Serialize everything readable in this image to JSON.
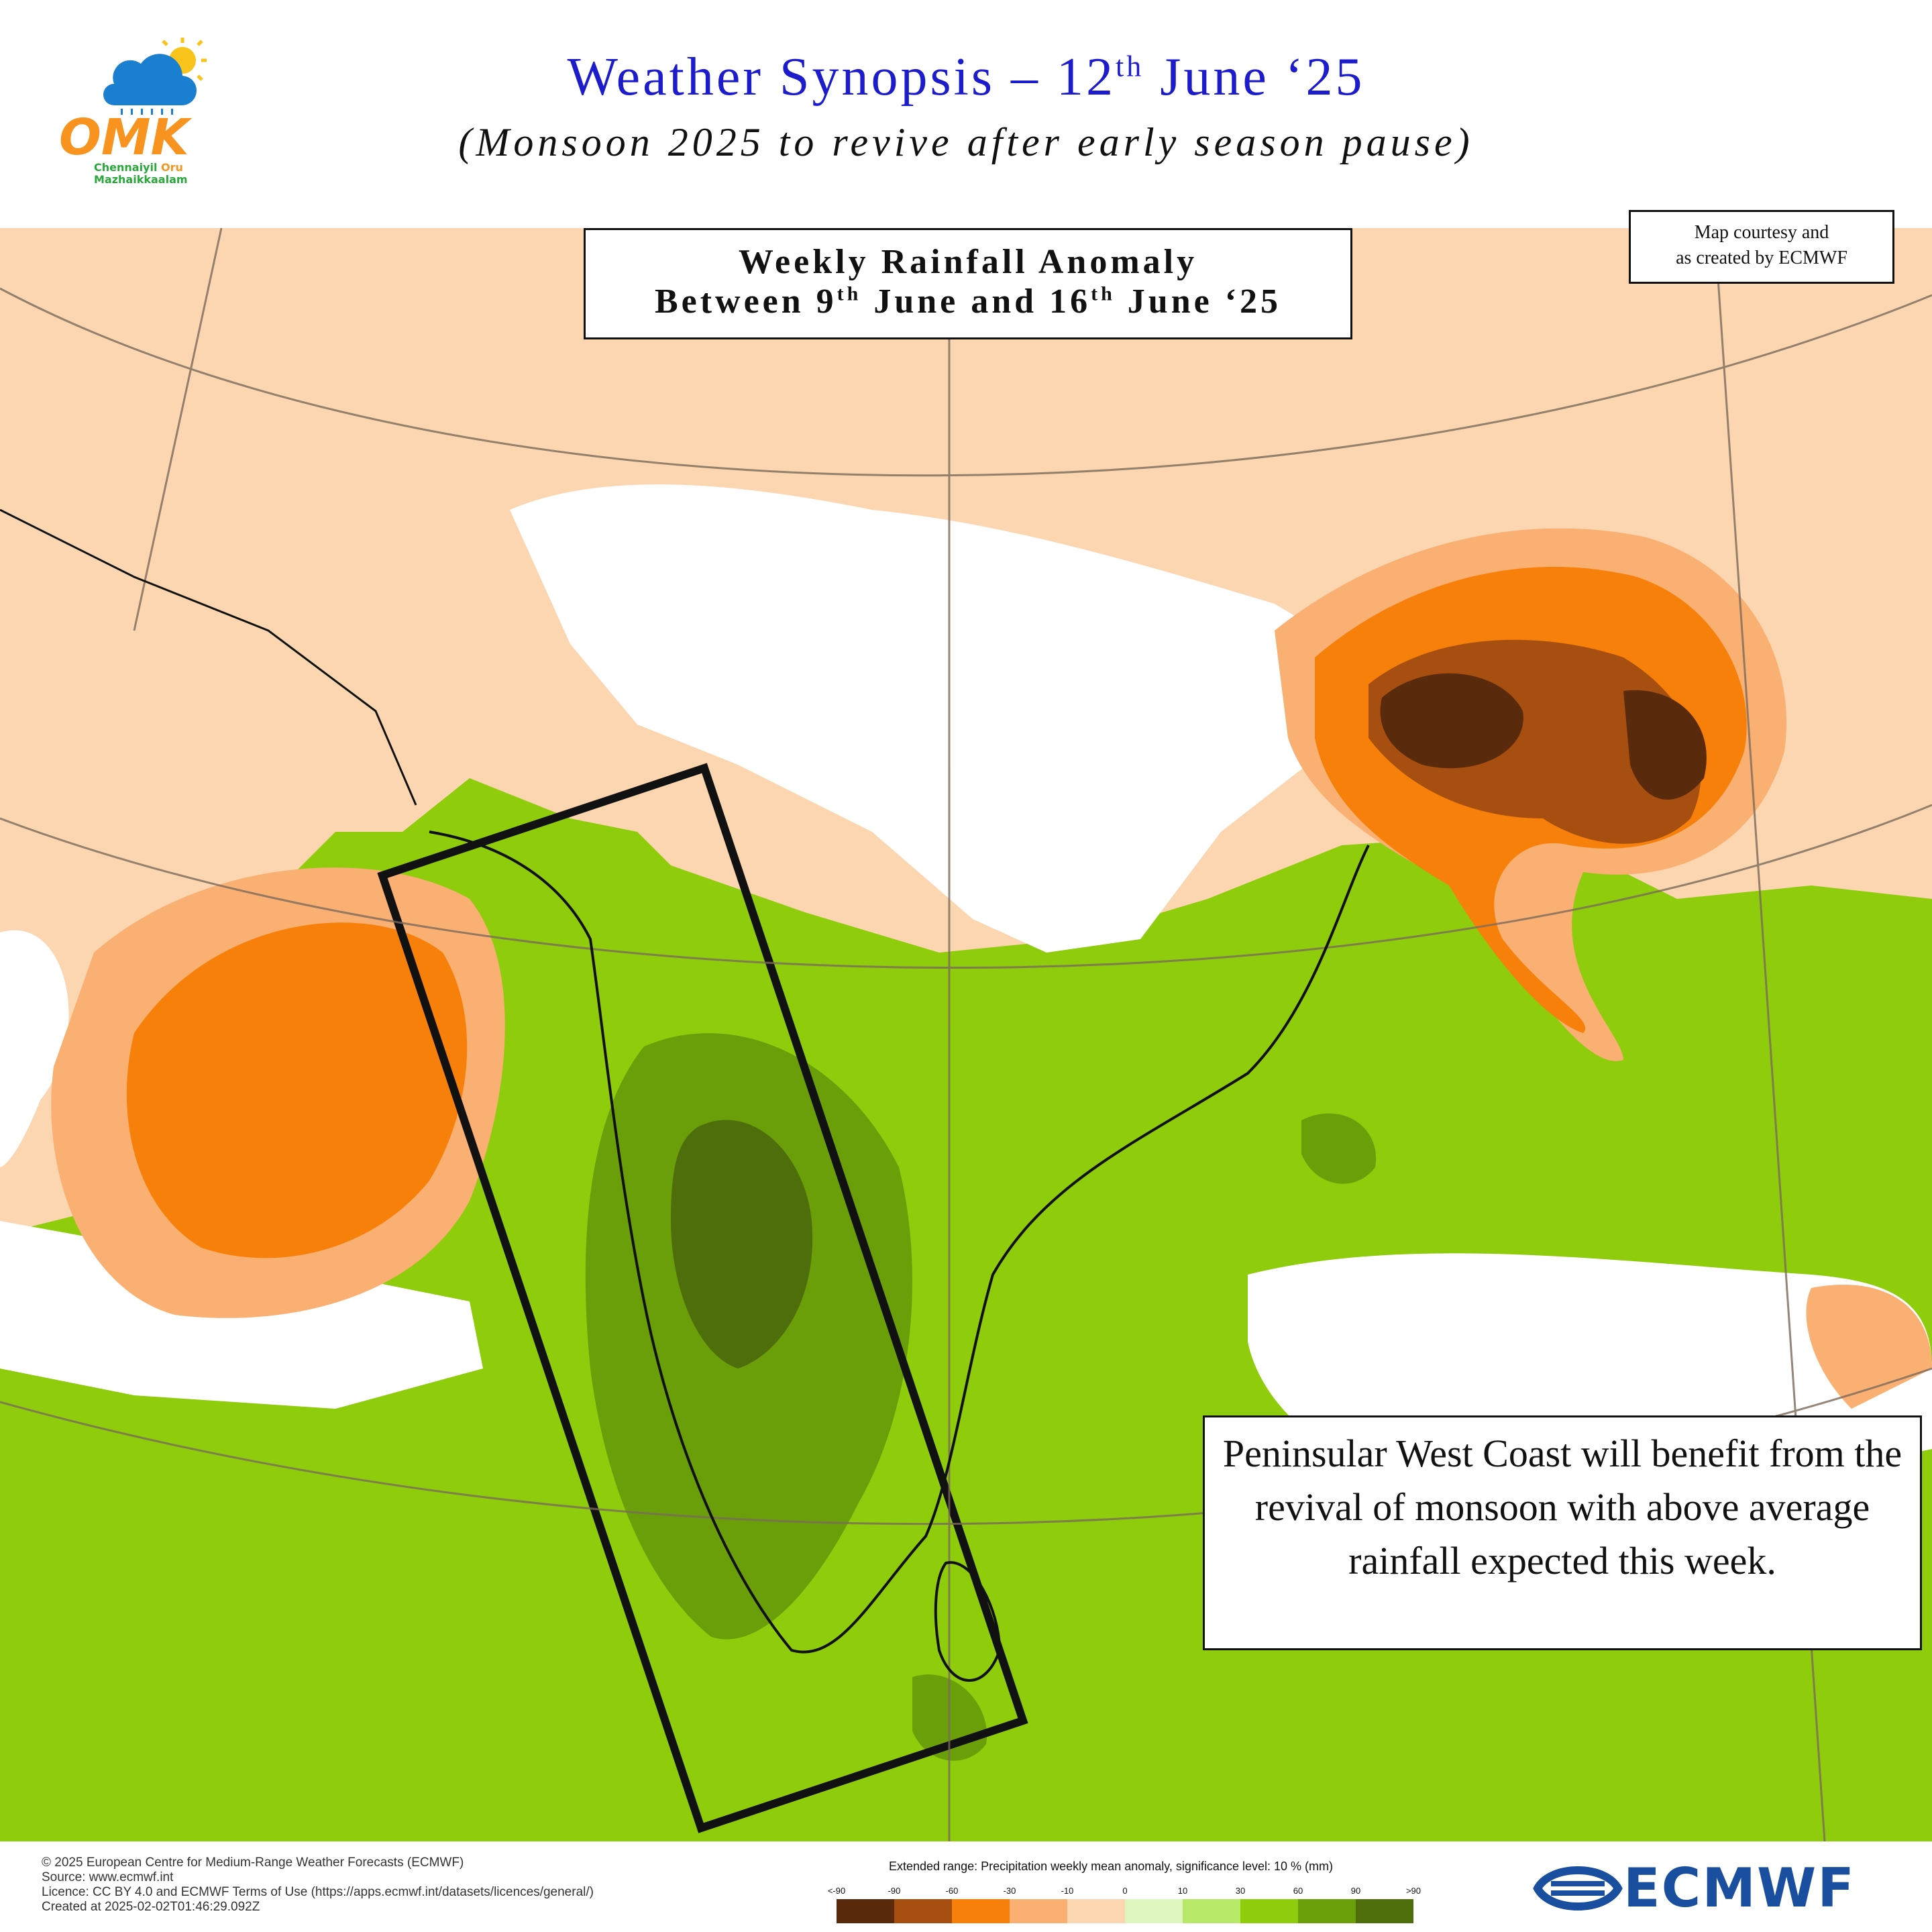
{
  "header": {
    "title_main": "Weather Synopsis – 12",
    "title_sup": "th",
    "title_end": " June ‘25",
    "subtitle": "(Monsoon 2025 to revive after early season pause)"
  },
  "logo": {
    "letters": "OMK",
    "line1_a": "Chennaiyil",
    "line1_b": "Oru",
    "line2": "Mazhaikkaalam"
  },
  "anomaly_box": {
    "line1": "Weekly Rainfall Anomaly",
    "line2_a": "Between 9",
    "line2_sup1": "th",
    "line2_b": " June and 16",
    "line2_sup2": "th",
    "line2_c": " June ‘25"
  },
  "courtesy": {
    "line1": "Map courtesy and",
    "line2": "as created by ECMWF"
  },
  "note": {
    "text": "Peninsular West Coast will benefit from the revival of monsoon with above average rainfall expected this week."
  },
  "footer": {
    "lines": [
      "© 2025 European Centre for Medium-Range Weather Forecasts (ECMWF)",
      "Source: www.ecmwf.int",
      "Licence: CC BY 4.0 and ECMWF Terms of Use (https://apps.ecmwf.int/datasets/licences/general/)",
      "Created at 2025-02-02T01:46:29.092Z"
    ]
  },
  "legend": {
    "title": "Extended range: Precipitation weekly mean anomaly, significance level: 10 % (mm)",
    "ticks": [
      "<-90",
      "-90",
      "-60",
      "-30",
      "-10",
      "0",
      "10",
      "30",
      "60",
      "90",
      ">90"
    ],
    "colors": [
      "#5a2a0c",
      "#a64f10",
      "#f7800a",
      "#f9b072",
      "#fbd6b0",
      "#dff5c0",
      "#b7e868",
      "#8ecc0c",
      "#6a9f0a",
      "#4e6e0c"
    ]
  },
  "brand": {
    "name": "ECMWF",
    "color": "#1a4fa0"
  },
  "map_colors": {
    "ocean_green": "#8ecc0c",
    "light_green": "#b7e868",
    "pale_green": "#dff5c0",
    "dark_green": "#6a9f0a",
    "darkest_green": "#4e6e0c",
    "peach": "#fbd6b0",
    "light_orange": "#f9b072",
    "orange": "#f7800a",
    "brown": "#a64f10",
    "dark_brown": "#5a2a0c",
    "white": "#ffffff"
  }
}
